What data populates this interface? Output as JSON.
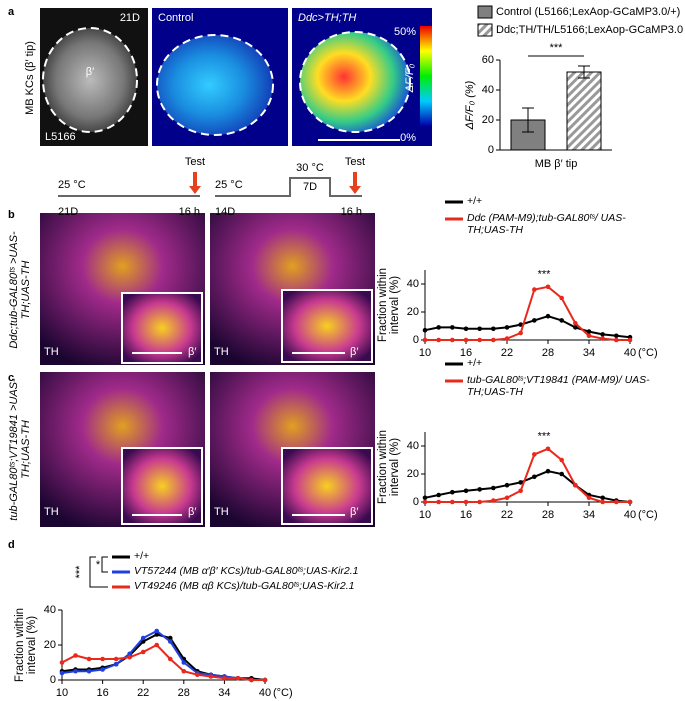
{
  "figure": {
    "panel_labels": [
      "a",
      "b",
      "c",
      "d"
    ],
    "a_row_label": "MB KCs (β′ tip)",
    "a_images": [
      "21D",
      "β′",
      "L5166",
      "Control",
      "Ddc>TH;TH"
    ],
    "colorbar": [
      "50%",
      "ΔF/F₀",
      "0%"
    ],
    "timeline": [
      "Test",
      "25 °C",
      "21D",
      "16 h",
      "25 °C",
      "14D",
      "30 °C",
      "7D",
      "Test",
      "16 h"
    ],
    "row_labels": [
      "Ddc;tub-GAL80ᵗˢ >UAS-TH;UAS-TH",
      "tub-GAL80ᵗˢ;VT19841 >UAS-TH;UAS-TH"
    ],
    "image_tags": [
      "TH",
      "β′",
      "TH",
      "β′",
      "TH",
      "β′",
      "TH",
      "β′"
    ]
  },
  "chart_data": [
    {
      "type": "bar",
      "categories": [
        "MB β′ tip"
      ],
      "ylabel": "ΔF/F₀ (%)",
      "series": [
        {
          "name": "Control (L5166;LexAop-GCaMP3.0/+)",
          "color": "#808080",
          "values": [
            20
          ],
          "errors": [
            8
          ]
        },
        {
          "name": "Ddc;TH/TH/L5166;LexAop-GCaMP3.0",
          "color": "#999999",
          "hatch": true,
          "values": [
            52
          ],
          "errors": [
            4
          ]
        }
      ],
      "ylim": [
        0,
        60
      ],
      "yticks": [
        0,
        20,
        40,
        60
      ],
      "annotation": "***"
    },
    {
      "type": "line",
      "ylabel": "Fraction within interval (%)",
      "xlabel": "(°C)",
      "x": [
        10,
        12,
        14,
        16,
        18,
        20,
        22,
        24,
        26,
        28,
        30,
        32,
        34,
        36,
        38,
        40
      ],
      "series": [
        {
          "name": "+/+",
          "color": "#000000",
          "values": [
            7,
            9,
            9,
            8,
            8,
            8,
            9,
            11,
            14,
            17,
            14,
            9,
            6,
            4,
            3,
            2
          ]
        },
        {
          "name": "Ddc (PAM-M9);tub-GAL80ᵗˢ/ UAS-TH;UAS-TH",
          "color": "#e8291c",
          "values": [
            0,
            0,
            0,
            0,
            0,
            0,
            1,
            5,
            36,
            38,
            30,
            12,
            3,
            1,
            0,
            0
          ]
        }
      ],
      "xlim": [
        10,
        40
      ],
      "xticks": [
        10,
        16,
        22,
        28,
        34,
        40
      ],
      "ylim": [
        0,
        50
      ],
      "yticks": [
        0,
        20,
        40
      ],
      "annotation": "***"
    },
    {
      "type": "line",
      "ylabel": "Fraction within interval (%)",
      "xlabel": "(°C)",
      "x": [
        10,
        12,
        14,
        16,
        18,
        20,
        22,
        24,
        26,
        28,
        30,
        32,
        34,
        36,
        38,
        40
      ],
      "series": [
        {
          "name": "+/+",
          "color": "#000000",
          "values": [
            3,
            5,
            7,
            8,
            9,
            10,
            12,
            14,
            18,
            22,
            20,
            12,
            5,
            3,
            1,
            0
          ]
        },
        {
          "name": "tub-GAL80ᵗˢ;VT19841 (PAM-M9)/ UAS-TH;UAS-TH",
          "color": "#e8291c",
          "values": [
            0,
            0,
            0,
            0,
            0,
            1,
            3,
            8,
            34,
            38,
            30,
            12,
            3,
            0,
            0,
            0
          ]
        }
      ],
      "xlim": [
        10,
        40
      ],
      "xticks": [
        10,
        16,
        22,
        28,
        34,
        40
      ],
      "ylim": [
        0,
        50
      ],
      "yticks": [
        0,
        20,
        40
      ],
      "annotation": "***"
    },
    {
      "type": "line",
      "ylabel": "Fraction within interval (%)",
      "xlabel": "(°C)",
      "x": [
        10,
        12,
        14,
        16,
        18,
        20,
        22,
        24,
        26,
        28,
        30,
        32,
        34,
        36,
        38,
        40
      ],
      "series": [
        {
          "name": "+/+",
          "color": "#000000",
          "values": [
            5,
            6,
            6,
            7,
            9,
            14,
            22,
            26,
            24,
            12,
            5,
            3,
            2,
            1,
            1,
            0
          ]
        },
        {
          "name": "VT57244 (MB α′β′ KCs)/tub-GAL80ᵗˢ;UAS-Kir2.1",
          "color": "#1f3fe0",
          "values": [
            4,
            5,
            5,
            6,
            9,
            15,
            24,
            28,
            22,
            10,
            4,
            3,
            2,
            1,
            0,
            0
          ]
        },
        {
          "name": "VT49246 (MB αβ KCs)/tub-GAL80ᵗˢ;UAS-Kir2.1",
          "color": "#e8291c",
          "values": [
            10,
            14,
            12,
            12,
            12,
            13,
            16,
            20,
            12,
            5,
            3,
            2,
            1,
            1,
            0,
            0
          ]
        }
      ],
      "xlim": [
        10,
        40
      ],
      "xticks": [
        10,
        16,
        22,
        28,
        34,
        40
      ],
      "ylim": [
        0,
        40
      ],
      "yticks": [
        0,
        20,
        40
      ],
      "annotations": [
        "***",
        "*"
      ]
    }
  ]
}
